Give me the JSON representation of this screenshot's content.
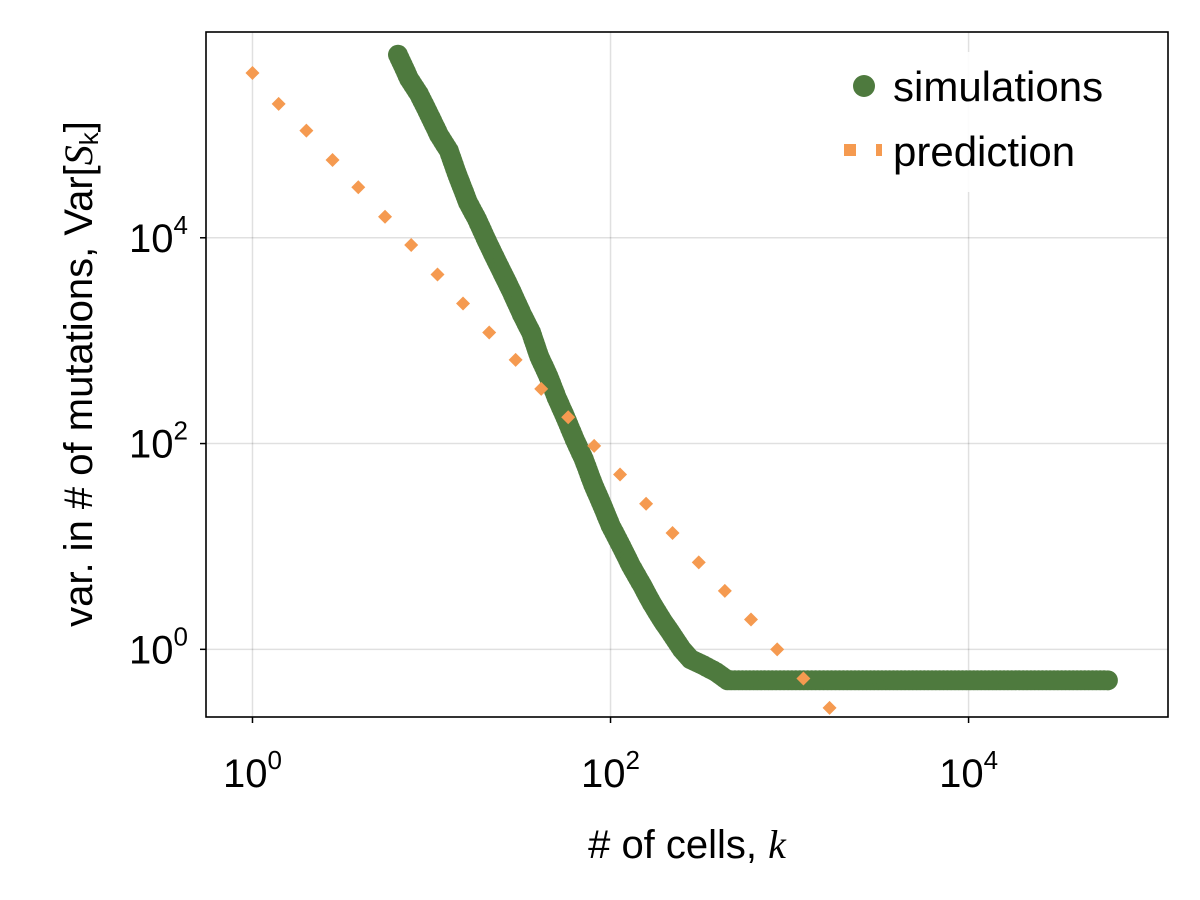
{
  "chart_data": {
    "type": "scatter",
    "title": "",
    "xlabel": "# of cells, k",
    "xlabel_prefix": "# of cells, ",
    "xlabel_var": "k",
    "ylabel": "var. in # of mutations, Var[Sk]",
    "ylabel_prefix": "var. in # of mutations, Var[",
    "ylabel_S": "S",
    "ylabel_sub": "k",
    "ylabel_suffix": "]",
    "xscale": "log10",
    "yscale": "log10",
    "xlim": [
      0.55,
      130000
    ],
    "ylim": [
      0.22,
      1000000
    ],
    "grid": true,
    "legend_position": "top-right",
    "x_ticks": [
      {
        "base": "10",
        "exp": "0",
        "value": 1
      },
      {
        "base": "10",
        "exp": "2",
        "value": 100
      },
      {
        "base": "10",
        "exp": "4",
        "value": 10000
      }
    ],
    "y_ticks": [
      {
        "base": "10",
        "exp": "0",
        "value": 1
      },
      {
        "base": "10",
        "exp": "2",
        "value": 100
      },
      {
        "base": "10",
        "exp": "4",
        "value": 10000
      }
    ],
    "series": [
      {
        "name": "simulations",
        "color": "#4e7a3e",
        "marker": "circle",
        "points": [
          [
            6.5,
            600000
          ],
          [
            7.5,
            350000
          ],
          [
            8.5,
            250000
          ],
          [
            9.5,
            170000
          ],
          [
            11,
            100000
          ],
          [
            12.5,
            70000
          ],
          [
            14,
            40000
          ],
          [
            16,
            22000
          ],
          [
            18,
            15000
          ],
          [
            20,
            10000
          ],
          [
            22.5,
            6500
          ],
          [
            25,
            4500
          ],
          [
            28,
            3000
          ],
          [
            32,
            1800
          ],
          [
            36,
            1200
          ],
          [
            40,
            700
          ],
          [
            45,
            450
          ],
          [
            50,
            280
          ],
          [
            56,
            180
          ],
          [
            63,
            110
          ],
          [
            71,
            70
          ],
          [
            80,
            40
          ],
          [
            90,
            25
          ],
          [
            100,
            16
          ],
          [
            115,
            10
          ],
          [
            130,
            6.5
          ],
          [
            150,
            4.2
          ],
          [
            170,
            2.8
          ],
          [
            195,
            1.9
          ],
          [
            220,
            1.4
          ],
          [
            250,
            1.0
          ],
          [
            280,
            0.8
          ],
          [
            330,
            0.7
          ],
          [
            390,
            0.6
          ],
          [
            450,
            0.5
          ],
          [
            600,
            0.5
          ],
          [
            800,
            0.5
          ],
          [
            1200,
            0.5
          ],
          [
            2000,
            0.5
          ],
          [
            4000,
            0.5
          ],
          [
            8000,
            0.5
          ],
          [
            15000,
            0.5
          ],
          [
            30000,
            0.5
          ],
          [
            60000,
            0.5
          ]
        ]
      },
      {
        "name": "prediction",
        "color": "#f59a50",
        "marker": "diamond",
        "points": [
          [
            1.0,
            400000
          ],
          [
            1.4,
            200000
          ],
          [
            2.0,
            110000
          ],
          [
            2.8,
            57000
          ],
          [
            3.9,
            31000
          ],
          [
            5.5,
            16000
          ],
          [
            7.7,
            8500
          ],
          [
            10.8,
            4400
          ],
          [
            15,
            2300
          ],
          [
            21,
            1200
          ],
          [
            29.5,
            650
          ],
          [
            41,
            340
          ],
          [
            58,
            180
          ],
          [
            81,
            95
          ],
          [
            113,
            50
          ],
          [
            158,
            26
          ],
          [
            222,
            13.5
          ],
          [
            311,
            7
          ],
          [
            435,
            3.7
          ],
          [
            609,
            1.95
          ],
          [
            853,
            1.0
          ],
          [
            1195,
            0.52
          ],
          [
            1673,
            0.27
          ]
        ]
      }
    ]
  }
}
